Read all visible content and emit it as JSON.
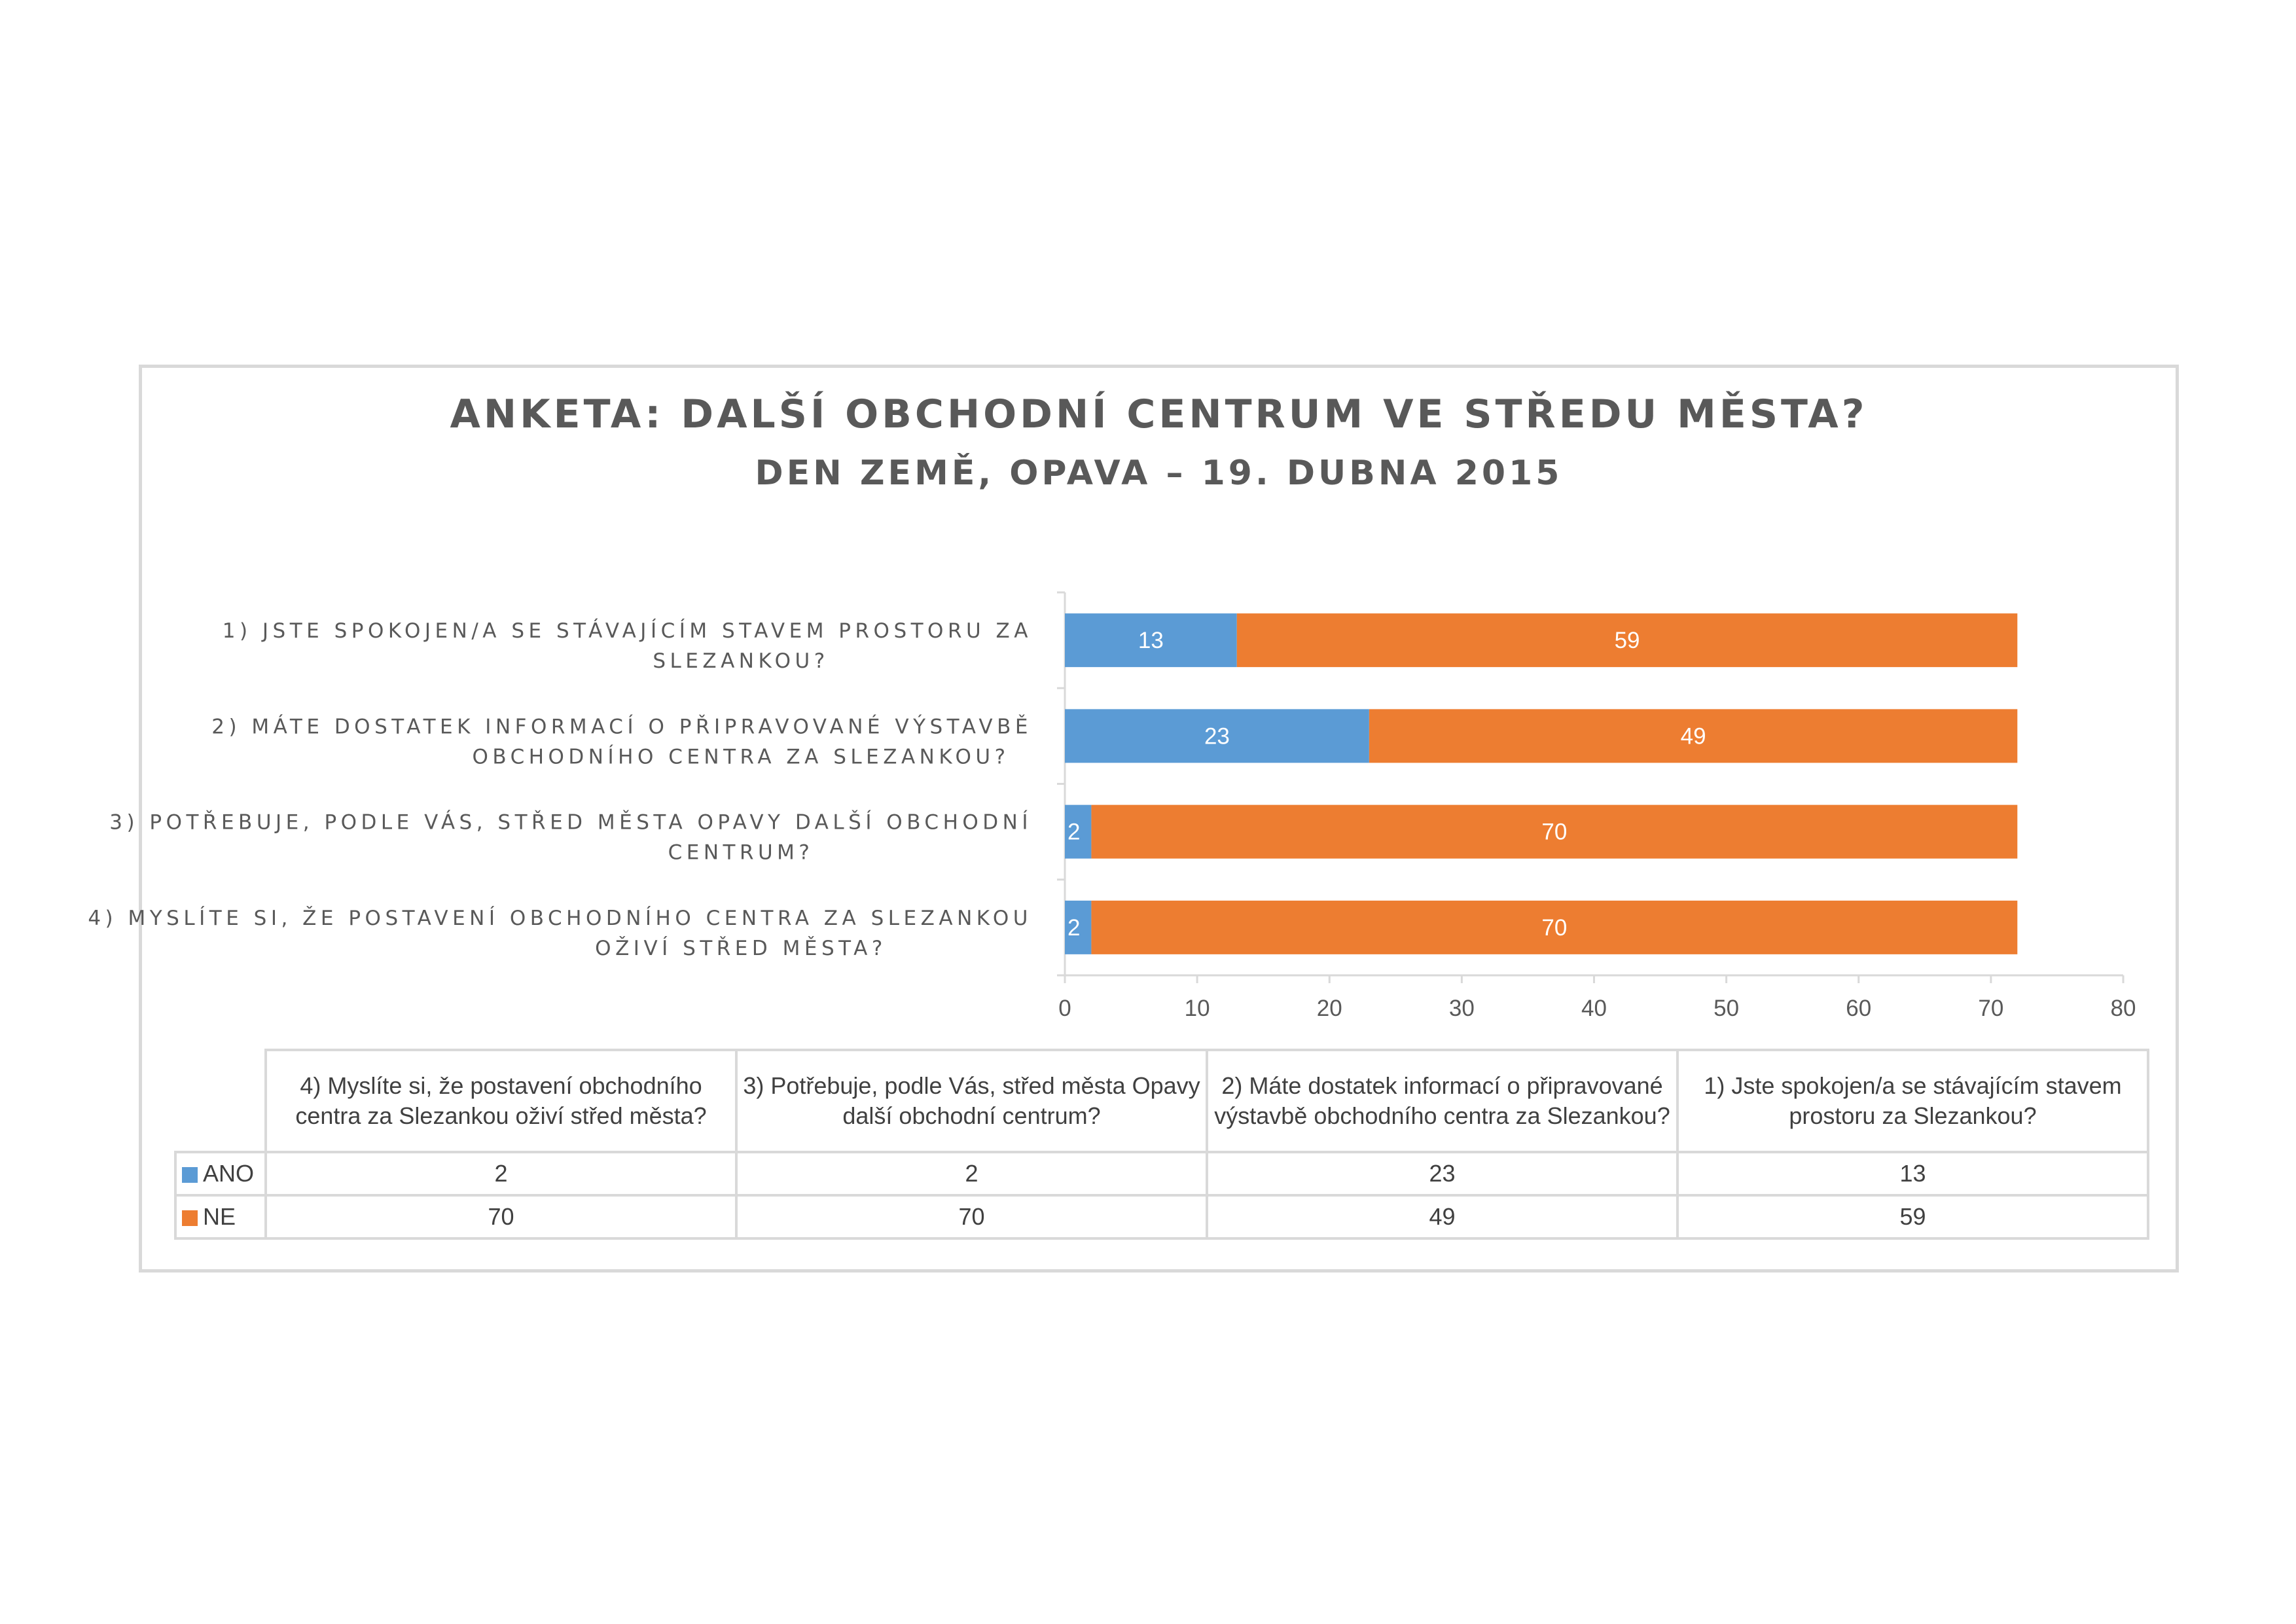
{
  "chart_data": {
    "type": "bar",
    "orientation": "horizontal",
    "stacked": true,
    "title": "ANKETA: DALŠÍ OBCHODNÍ CENTRUM VE STŘEDU MĚSTA?",
    "subtitle": "DEN ZEMĚ, OPAVA – 19. DUBNA 2015",
    "categories": [
      "1) JSTE SPOKOJEN/A SE STÁVAJÍCÍM STAVEM PROSTORU ZA SLEZANKOU?",
      "2) MÁTE DOSTATEK INFORMACÍ O PŘIPRAVOVANÉ VÝSTAVBĚ OBCHODNÍHO CENTRA ZA SLEZANKOU?",
      "3) POTŘEBUJE, PODLE VÁS, STŘED MĚSTA OPAVY DALŠÍ OBCHODNÍ CENTRUM?",
      "4) MYSLÍTE SI, ŽE POSTAVENÍ OBCHODNÍHO CENTRA ZA SLEZANKOU OŽIVÍ STŘED MĚSTA?"
    ],
    "category_label_lines": [
      [
        "1) JSTE SPOKOJEN/A SE STÁVAJÍCÍM STAVEM PROSTORU ZA",
        "SLEZANKOU?"
      ],
      [
        "2) MÁTE DOSTATEK INFORMACÍ O PŘIPRAVOVANÉ VÝSTAVBĚ",
        "OBCHODNÍHO CENTRA ZA SLEZANKOU?"
      ],
      [
        "3) POTŘEBUJE, PODLE VÁS, STŘED MĚSTA OPAVY DALŠÍ OBCHODNÍ",
        "CENTRUM?"
      ],
      [
        "4) MYSLÍTE SI, ŽE POSTAVENÍ OBCHODNÍHO CENTRA ZA SLEZANKOU",
        "OŽIVÍ STŘED MĚSTA?"
      ]
    ],
    "series": [
      {
        "name": "ANO",
        "color": "#5B9BD5",
        "values": [
          13,
          23,
          2,
          2
        ]
      },
      {
        "name": "NE",
        "color": "#ED7D31",
        "values": [
          59,
          49,
          70,
          70
        ]
      }
    ],
    "xlim": [
      0,
      80
    ],
    "xticks": [
      0,
      10,
      20,
      30,
      40,
      50,
      60,
      70,
      80
    ],
    "grid": false,
    "legend": "data-table"
  },
  "data_table": {
    "columns": [
      "4) Myslíte si, že postavení obchodního centra za Slezankou oživí střed města?",
      "3) Potřebuje, podle Vás, střed města Opavy další obchodní centrum?",
      "2) Máte dostatek informací o připravované výstavbě obchodního centra za Slezankou?",
      "1) Jste spokojen/a se stávajícím stavem prostoru za Slezankou?"
    ],
    "rows": [
      {
        "series": "ANO",
        "color": "#5B9BD5",
        "values": [
          "2",
          "2",
          "23",
          "13"
        ]
      },
      {
        "series": "NE",
        "color": "#ED7D31",
        "values": [
          "70",
          "70",
          "49",
          "59"
        ]
      }
    ]
  }
}
